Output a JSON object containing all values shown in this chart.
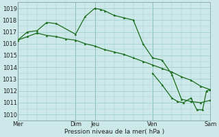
{
  "background_color": "#cce8e8",
  "grid_color": "#99cccc",
  "line_color": "#1a6b1a",
  "marker_color": "#1a6b1a",
  "xlabel": "Pression niveau de la mer( hPa )",
  "ylim": [
    1009.5,
    1019.5
  ],
  "yticks": [
    1010,
    1011,
    1012,
    1013,
    1014,
    1015,
    1016,
    1017,
    1018,
    1019
  ],
  "xlim": [
    0,
    10
  ],
  "xtick_labels": [
    "Mer",
    "Dim",
    "Jeu",
    "Ven",
    "Sam"
  ],
  "xtick_positions": [
    0,
    3,
    4,
    7,
    10
  ],
  "vlines": [
    0,
    3,
    4,
    7,
    10
  ],
  "series1": {
    "x": [
      0,
      0.5,
      1.0,
      1.5,
      2.0,
      2.5,
      3.0,
      3.5,
      4.0,
      4.5,
      5.0,
      5.5,
      6.0,
      6.5,
      7.0,
      7.5,
      8.0,
      8.5,
      9.0,
      9.5,
      10.0
    ],
    "y": [
      1016.3,
      1016.6,
      1016.9,
      1016.7,
      1016.6,
      1016.4,
      1016.3,
      1016.0,
      1015.8,
      1015.5,
      1015.3,
      1015.1,
      1014.8,
      1014.5,
      1014.2,
      1013.9,
      1013.6,
      1013.2,
      1012.9,
      1012.4,
      1012.1
    ]
  },
  "series2": {
    "x": [
      0,
      0.5,
      1.0,
      1.5,
      2.0,
      3.0,
      3.5,
      4.0,
      4.3,
      4.5,
      5.0,
      5.5,
      6.0,
      6.5,
      7.0,
      7.5,
      8.0,
      8.5,
      9.0,
      9.5,
      10.0
    ],
    "y": [
      1016.3,
      1017.0,
      1017.1,
      1017.8,
      1017.7,
      1016.8,
      1018.3,
      1019.0,
      1018.9,
      1018.8,
      1018.4,
      1018.2,
      1018.0,
      1016.0,
      1014.8,
      1014.6,
      1013.4,
      1011.3,
      1011.1,
      1011.0,
      1011.2
    ]
  },
  "series3": {
    "x": [
      7.0,
      7.5,
      8.0,
      8.3,
      8.6,
      9.0,
      9.3,
      9.6,
      9.8,
      10.0
    ],
    "y": [
      1013.5,
      1012.5,
      1011.4,
      1011.1,
      1011.0,
      1011.4,
      1010.4,
      1010.4,
      1012.0,
      1012.1
    ]
  }
}
